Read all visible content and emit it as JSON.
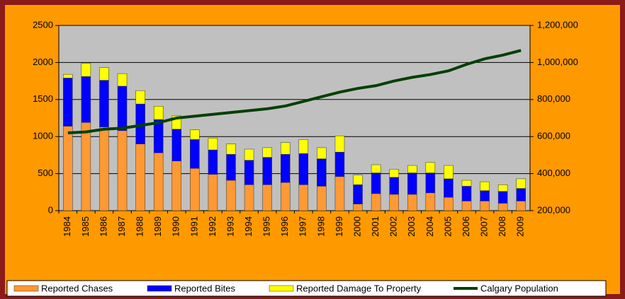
{
  "chart_data": {
    "type": "bar",
    "stacked": true,
    "categories": [
      "1984",
      "1985",
      "1986",
      "1987",
      "1988",
      "1989",
      "1990",
      "1991",
      "1992",
      "1993",
      "1994",
      "1995",
      "1996",
      "1997",
      "1998",
      "1999",
      "2000",
      "2001",
      "2002",
      "2003",
      "2004",
      "2005",
      "2006",
      "2007",
      "2008",
      "2009"
    ],
    "series": [
      {
        "name": "Reported Chases",
        "type": "bar",
        "color": "#ff9933",
        "values": [
          1140,
          1190,
          1130,
          1080,
          900,
          780,
          670,
          570,
          490,
          410,
          350,
          350,
          380,
          350,
          330,
          460,
          90,
          230,
          220,
          220,
          240,
          180,
          130,
          130,
          100,
          130
        ]
      },
      {
        "name": "Reported Bites",
        "type": "bar",
        "color": "#0000ff",
        "values": [
          650,
          620,
          630,
          600,
          540,
          450,
          430,
          390,
          330,
          350,
          330,
          370,
          380,
          420,
          370,
          330,
          260,
          280,
          230,
          290,
          270,
          250,
          200,
          140,
          160,
          170
        ]
      },
      {
        "name": "Reported Damage To Property",
        "type": "bar",
        "color": "#ffff00",
        "values": [
          50,
          180,
          170,
          170,
          180,
          180,
          180,
          130,
          160,
          140,
          150,
          130,
          160,
          190,
          150,
          220,
          130,
          110,
          110,
          100,
          140,
          180,
          80,
          120,
          90,
          130
        ]
      },
      {
        "name": "Calgary Population",
        "type": "line",
        "axis": "y2",
        "color": "#004000",
        "values": [
          620000,
          625000,
          640000,
          645000,
          660000,
          675000,
          700000,
          710000,
          720000,
          730000,
          740000,
          750000,
          765000,
          790000,
          815000,
          840000,
          860000,
          875000,
          900000,
          920000,
          935000,
          955000,
          990000,
          1020000,
          1040000,
          1065000
        ]
      }
    ],
    "ylim": [
      0,
      2500
    ],
    "yticks": [
      0,
      500,
      1000,
      1500,
      2000,
      2500
    ],
    "y2lim": [
      200000,
      1200000
    ],
    "y2ticks": [
      {
        "value": 200000,
        "label": "200,000"
      },
      {
        "value": 400000,
        "label": "400,000"
      },
      {
        "value": 600000,
        "label": "600,000"
      },
      {
        "value": 800000,
        "label": "800,000"
      },
      {
        "value": 1000000,
        "label": "1,000,000"
      },
      {
        "value": 1200000,
        "label": "1,200,000"
      }
    ],
    "grid": true,
    "legend": "bottom"
  }
}
